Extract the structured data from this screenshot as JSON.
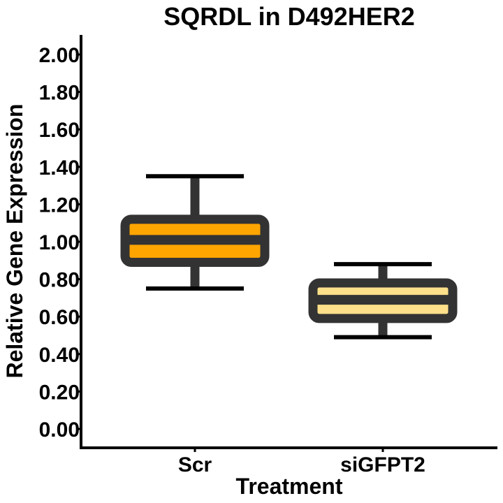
{
  "chart_data": {
    "type": "box",
    "title": "SQRDL in D492HER2",
    "xlabel": "Treatment",
    "ylabel": "Relative Gene Expression",
    "ylim": [
      0,
      2.0
    ],
    "yticks": [
      0.0,
      0.2,
      0.4,
      0.6,
      0.8,
      1.0,
      1.2,
      1.4,
      1.6,
      1.8,
      2.0
    ],
    "ytick_labels": [
      "0.00",
      "0.20",
      "0.40",
      "0.60",
      "0.80",
      "1.00",
      "1.20",
      "1.40",
      "1.60",
      "1.80",
      "2.00"
    ],
    "categories": [
      "Scr",
      "siGFPT2"
    ],
    "boxes": [
      {
        "category": "Scr",
        "whisker_low": 0.75,
        "q1": 0.89,
        "median": 1.01,
        "q3": 1.12,
        "whisker_high": 1.35,
        "fill": "#FFA500"
      },
      {
        "category": "siGFPT2",
        "whisker_low": 0.49,
        "q1": 0.59,
        "median": 0.69,
        "q3": 0.78,
        "whisker_high": 0.88,
        "fill": "#FFE08A"
      }
    ],
    "outline_color": "#333333",
    "grid": false
  }
}
